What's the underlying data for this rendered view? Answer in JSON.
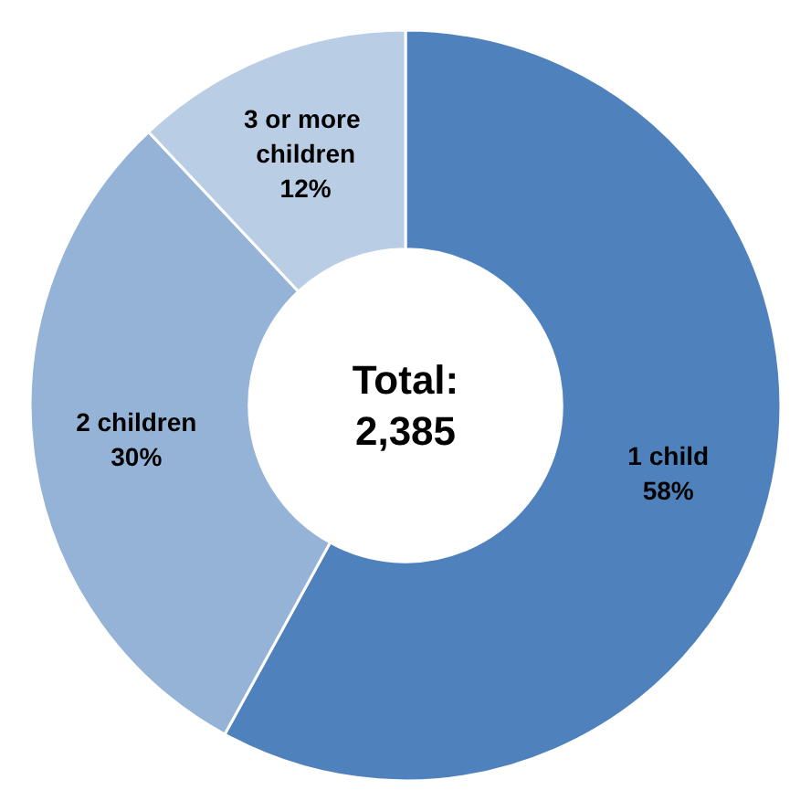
{
  "chart_data": {
    "type": "donut",
    "categories": [
      "1 child",
      "2 children",
      "3 or more children"
    ],
    "values": [
      58,
      30,
      12
    ],
    "colors": [
      "#4f81bd",
      "#95b3d7",
      "#b9cde5"
    ],
    "value_labels": [
      "58%",
      "30%",
      "12%"
    ],
    "annotations": [
      "Total:\n2,385"
    ],
    "legend": false
  }
}
